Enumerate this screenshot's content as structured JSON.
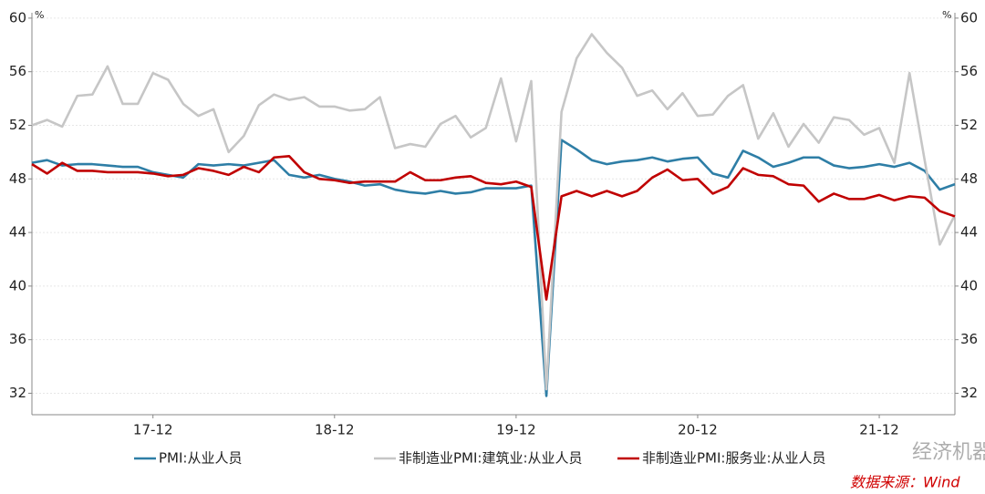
{
  "chart_data": {
    "type": "line",
    "categories": [
      null,
      null,
      null,
      null,
      null,
      null,
      null,
      null,
      "17-12",
      null,
      null,
      null,
      null,
      null,
      null,
      null,
      null,
      null,
      null,
      null,
      "18-12",
      null,
      null,
      null,
      null,
      null,
      null,
      null,
      null,
      null,
      null,
      null,
      "19-12",
      null,
      null,
      null,
      null,
      null,
      null,
      null,
      null,
      null,
      null,
      null,
      "20-12",
      null,
      null,
      null,
      null,
      null,
      null,
      null,
      null,
      null,
      null,
      null,
      "21-12",
      null,
      null,
      null,
      null,
      null
    ],
    "y_unit": "%",
    "y2_unit": "%",
    "ylim": [
      30.4,
      60.4
    ],
    "yticks": [
      32,
      36,
      40,
      44,
      48,
      52,
      56,
      60
    ],
    "y2lim": [
      30.4,
      60.4
    ],
    "y2ticks": [
      32,
      36,
      40,
      44,
      48,
      52,
      56,
      60
    ],
    "grid": true,
    "legend": "bottom",
    "series": [
      {
        "name": "PMI:从业人员",
        "color": "#2e7ea6",
        "values": [
          49.2,
          49.4,
          49.0,
          49.1,
          49.1,
          49.0,
          48.9,
          48.9,
          48.5,
          48.3,
          48.1,
          49.1,
          49.0,
          49.1,
          49.0,
          49.2,
          49.4,
          48.3,
          48.1,
          48.3,
          48.0,
          47.8,
          47.5,
          47.6,
          47.2,
          47.0,
          46.9,
          47.1,
          46.9,
          47.0,
          47.3,
          47.3,
          47.3,
          47.5,
          31.8,
          50.9,
          50.2,
          49.4,
          49.1,
          49.3,
          49.4,
          49.6,
          49.3,
          49.5,
          49.6,
          48.4,
          48.1,
          50.1,
          49.6,
          48.9,
          49.2,
          49.6,
          49.6,
          49.0,
          48.8,
          48.9,
          49.1,
          48.9,
          49.2,
          48.6,
          47.2,
          47.6
        ]
      },
      {
        "name": "非制造业PMI:建筑业:从业人员",
        "color": "#c6c6c6",
        "values": [
          52.0,
          52.4,
          51.9,
          54.2,
          54.3,
          56.4,
          53.6,
          53.6,
          55.9,
          55.4,
          53.6,
          52.7,
          53.2,
          50.0,
          51.2,
          53.5,
          54.3,
          53.9,
          54.1,
          53.4,
          53.4,
          53.1,
          53.2,
          54.1,
          50.3,
          50.6,
          50.4,
          52.1,
          52.7,
          51.1,
          51.8,
          55.5,
          50.8,
          55.3,
          32.3,
          53.0,
          57.0,
          58.8,
          57.4,
          56.3,
          54.2,
          54.6,
          53.2,
          54.4,
          52.7,
          52.8,
          54.2,
          55.0,
          51.0,
          52.9,
          50.4,
          52.1,
          50.7,
          52.6,
          52.4,
          51.3,
          51.8,
          49.2,
          55.9,
          49.4,
          43.1,
          45.3
        ],
        "axis": "y2"
      },
      {
        "name": "非制造业PMI:服务业:从业人员",
        "color": "#c00000",
        "values": [
          49.1,
          48.4,
          49.2,
          48.6,
          48.6,
          48.5,
          48.5,
          48.5,
          48.4,
          48.2,
          48.3,
          48.8,
          48.6,
          48.3,
          48.9,
          48.5,
          49.6,
          49.7,
          48.5,
          48.0,
          47.9,
          47.7,
          47.8,
          47.8,
          47.8,
          48.5,
          47.9,
          47.9,
          48.1,
          48.2,
          47.7,
          47.6,
          47.8,
          47.4,
          39.0,
          46.7,
          47.1,
          46.7,
          47.1,
          46.7,
          47.1,
          48.1,
          48.7,
          47.9,
          48.0,
          46.9,
          47.4,
          48.8,
          48.3,
          48.2,
          47.6,
          47.5,
          46.3,
          46.9,
          46.5,
          46.5,
          46.8,
          46.4,
          46.7,
          46.6,
          45.6,
          45.2
        ],
        "axis": "y2"
      }
    ],
    "watermark": "经济机器",
    "source": "数据来源：Wind"
  }
}
